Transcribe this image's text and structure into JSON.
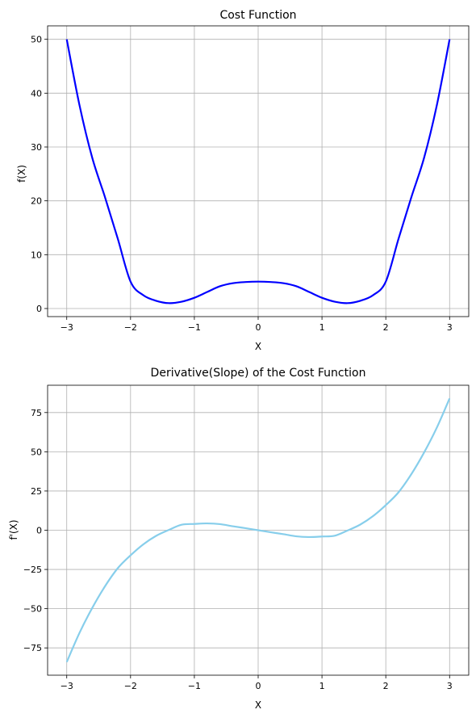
{
  "chart_data": [
    {
      "type": "line",
      "title": "Cost Function",
      "xlabel": "X",
      "ylabel": "f(X)",
      "xlim": [
        -3.3,
        3.3
      ],
      "ylim": [
        -1.5,
        52.5
      ],
      "xticks": [
        -3,
        -2,
        -1,
        0,
        1,
        2,
        3
      ],
      "yticks": [
        0,
        10,
        20,
        30,
        40,
        50
      ],
      "grid": true,
      "series": [
        {
          "color": "#0000ff",
          "x": [
            -3.0,
            -2.8,
            -2.6,
            -2.4,
            -2.2,
            -2.0,
            -1.8,
            -1.6,
            -1.4,
            -1.2,
            -1.0,
            -0.8,
            -0.6,
            -0.4,
            -0.2,
            0.0,
            0.2,
            0.4,
            0.6,
            0.8,
            1.0,
            1.2,
            1.4,
            1.6,
            1.8,
            2.0,
            2.2,
            2.4,
            2.6,
            2.8,
            3.0
          ],
          "y": [
            50.0,
            37.75,
            27.98,
            20.66,
            12.96,
            5.0,
            2.47,
            1.44,
            1.0,
            1.27,
            2.0,
            3.07,
            4.13,
            4.7,
            4.92,
            5.0,
            4.92,
            4.7,
            4.13,
            3.07,
            2.0,
            1.27,
            1.0,
            1.44,
            2.47,
            5.0,
            12.96,
            20.66,
            27.98,
            37.75,
            50.0
          ]
        }
      ]
    },
    {
      "type": "line",
      "title": "Derivative(Slope) of the Cost Function",
      "xlabel": "X",
      "ylabel": "f'(X)",
      "xlim": [
        -3.3,
        3.3
      ],
      "ylim": [
        -92.4,
        92.4
      ],
      "xticks": [
        -3,
        -2,
        -1,
        0,
        1,
        2,
        3
      ],
      "yticks": [
        -75,
        -50,
        -25,
        0,
        25,
        50,
        75
      ],
      "grid": true,
      "series": [
        {
          "color": "#87ceeb",
          "x": [
            -3.0,
            -2.8,
            -2.6,
            -2.4,
            -2.2,
            -2.0,
            -1.8,
            -1.6,
            -1.4,
            -1.2,
            -1.0,
            -0.8,
            -0.6,
            -0.4,
            -0.2,
            0.0,
            0.2,
            0.4,
            0.6,
            0.8,
            1.0,
            1.2,
            1.4,
            1.6,
            1.8,
            2.0,
            2.2,
            2.4,
            2.6,
            2.8,
            3.0
          ],
          "y": [
            -84.0,
            -65.4,
            -49.5,
            -35.7,
            -24.2,
            -16.0,
            -9.0,
            -3.6,
            0.2,
            3.5,
            4.0,
            4.35,
            3.9,
            2.55,
            1.3,
            0.0,
            -1.3,
            -2.55,
            -3.9,
            -4.35,
            -4.0,
            -3.5,
            -0.2,
            3.6,
            9.0,
            16.0,
            24.2,
            35.7,
            49.5,
            65.4,
            84.0
          ]
        }
      ]
    }
  ]
}
